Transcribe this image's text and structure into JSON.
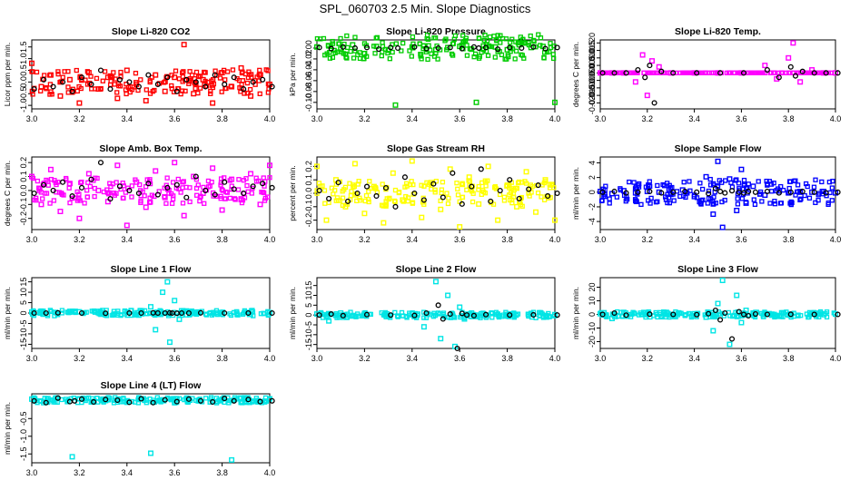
{
  "main_title": "SPL_060703  2.5 Min. Slope Diagnostics",
  "chart_data": [
    {
      "type": "scatter",
      "title": "Slope Li-820 CO2",
      "ylabel": "Licor ppm per min.",
      "color": "#ff0000",
      "xlim": [
        3.0,
        4.0
      ],
      "ylim": [
        -1.15,
        1.8
      ],
      "yticks": [
        -1.0,
        -0.5,
        0.0,
        0.5,
        1.0,
        1.5
      ],
      "yticklabels": [
        "-1.0",
        "-0.5",
        "0.0",
        "0.5",
        "1.0",
        "1.5"
      ],
      "x": [
        3.0,
        3.04,
        3.08,
        3.12,
        3.16,
        3.2,
        3.24,
        3.28,
        3.32,
        3.36,
        3.4,
        3.44,
        3.48,
        3.52,
        3.56,
        3.6,
        3.64,
        3.68,
        3.72,
        3.76,
        3.8,
        3.84,
        3.88,
        3.92,
        3.96,
        4.0
      ],
      "y": [
        0.8,
        -0.2,
        0.3,
        -0.6,
        0.1,
        -0.9,
        0.4,
        -0.3,
        0.2,
        -0.7,
        0.5,
        -0.1,
        -0.8,
        0.3,
        -0.4,
        0.2,
        1.6,
        -0.5,
        0.1,
        -0.9,
        0.4,
        -0.2,
        0.6,
        -0.6,
        0.3,
        -0.1
      ],
      "black_y": [
        -0.3,
        0.1,
        -0.2,
        0.0,
        -0.4,
        0.2,
        -0.1,
        0.5,
        -0.3,
        0.1,
        0.0,
        -0.2,
        0.3,
        -0.1,
        0.2,
        -0.4,
        0.1,
        0.0,
        -0.2,
        0.3,
        -0.1,
        0.2,
        -0.3,
        0.0,
        0.1,
        -0.2
      ]
    },
    {
      "type": "scatter",
      "title": "Slope Li-820 Pressure",
      "ylabel": "kPa per min.",
      "color": "#00cc00",
      "xlim": [
        3.0,
        4.0
      ],
      "ylim": [
        -0.112,
        0.015
      ],
      "yticks": [
        0.0,
        -0.02,
        -0.04,
        -0.06,
        -0.08,
        -0.1
      ],
      "yticklabels": [
        "0.00",
        "-0.02",
        "-0.04",
        "-0.06",
        "-0.08",
        "-0.10"
      ],
      "x": [
        3.0,
        3.05,
        3.1,
        3.15,
        3.2,
        3.25,
        3.3,
        3.33,
        3.4,
        3.45,
        3.5,
        3.55,
        3.6,
        3.65,
        3.67,
        3.7,
        3.75,
        3.8,
        3.85,
        3.9,
        3.95,
        4.0
      ],
      "y": [
        0.002,
        0.004,
        -0.002,
        0.006,
        -0.01,
        0.003,
        -0.004,
        -0.105,
        0.002,
        0.004,
        -0.003,
        0.001,
        0.003,
        -0.002,
        -0.1,
        0.004,
        0.002,
        -0.003,
        0.006,
        0.001,
        0.003,
        -0.1
      ],
      "black_y": [
        0.001,
        -0.001,
        0.002,
        0.0,
        0.001,
        -0.002,
        0.001,
        0.0,
        0.002,
        -0.001,
        0.0,
        0.001,
        -0.001,
        0.002,
        0.0,
        0.001,
        -0.002,
        0.001,
        0.0,
        0.002,
        -0.001,
        0.001
      ]
    },
    {
      "type": "scatter",
      "title": "Slope Li-820 Temp.",
      "ylabel": "degrees C per min.",
      "color": "#ff00ff",
      "xlim": [
        3.0,
        4.0
      ],
      "ylim": [
        -0.024,
        0.022
      ],
      "yticks": [
        0.02,
        0.015,
        0.01,
        0.005,
        0.0,
        -0.005,
        -0.01,
        -0.015,
        -0.02
      ],
      "yticklabels": [
        "0.020",
        "0.015",
        "0.010",
        "0.005",
        "0.000",
        "-0.005",
        "-0.010",
        "-0.015",
        "-0.020"
      ],
      "x": [
        3.0,
        3.05,
        3.1,
        3.15,
        3.18,
        3.2,
        3.22,
        3.25,
        3.3,
        3.4,
        3.5,
        3.6,
        3.7,
        3.75,
        3.8,
        3.82,
        3.85,
        3.9,
        3.95,
        4.0
      ],
      "y": [
        0.0,
        0.0,
        0.0,
        -0.006,
        0.012,
        -0.015,
        0.008,
        0.004,
        0.0,
        0.0,
        0.0,
        0.0,
        0.005,
        -0.004,
        0.01,
        0.02,
        -0.006,
        0.002,
        0.0,
        0.0
      ],
      "black_y": [
        0.0,
        0.0,
        0.0,
        0.002,
        -0.003,
        0.005,
        -0.02,
        0.001,
        0.0,
        0.0,
        0.0,
        0.0,
        0.002,
        -0.003,
        0.004,
        -0.002,
        0.001,
        0.0,
        0.0,
        0.0
      ]
    },
    {
      "type": "scatter",
      "title": "Slope Amb. Box Temp.",
      "ylabel": "degrees C per min.",
      "color": "#ff00ff",
      "xlim": [
        3.0,
        4.0
      ],
      "ylim": [
        -0.28,
        0.24
      ],
      "yticks": [
        0.2,
        0.1,
        0.0,
        -0.1,
        -0.2
      ],
      "yticklabels": [
        "0.2",
        "0.1",
        "0.0",
        "-0.1",
        "-0.2"
      ],
      "x": [
        3.0,
        3.04,
        3.08,
        3.12,
        3.16,
        3.2,
        3.24,
        3.28,
        3.32,
        3.36,
        3.4,
        3.44,
        3.48,
        3.52,
        3.56,
        3.6,
        3.64,
        3.68,
        3.72,
        3.76,
        3.8,
        3.84,
        3.88,
        3.92,
        3.96,
        4.0
      ],
      "y": [
        0.1,
        -0.1,
        0.15,
        -0.15,
        0.05,
        -0.2,
        0.12,
        0.0,
        -0.08,
        0.18,
        -0.25,
        0.06,
        -0.12,
        0.14,
        -0.05,
        0.2,
        -0.18,
        0.1,
        -0.02,
        0.16,
        -0.14,
        0.08,
        -0.06,
        0.12,
        -0.1,
        0.18
      ],
      "black_y": [
        -0.02,
        0.04,
        0.0,
        0.06,
        -0.04,
        0.02,
        0.08,
        0.2,
        -0.06,
        0.03,
        0.0,
        -0.02,
        0.05,
        -0.03,
        0.02,
        0.04,
        -0.05,
        0.1,
        0.0,
        -0.03,
        0.06,
        0.01,
        -0.02,
        0.03,
        0.05,
        0.02
      ]
    },
    {
      "type": "scatter",
      "title": "Slope Gas Stream RH",
      "ylabel": "percent per min.",
      "color": "#ffff00",
      "xlim": [
        3.0,
        4.0
      ],
      "ylim": [
        -0.27,
        0.27
      ],
      "yticks": [
        0.2,
        0.1,
        0.0,
        -0.1,
        -0.2
      ],
      "yticklabels": [
        "0.2",
        "0.1",
        "0.0",
        "-0.1",
        "-0.2"
      ],
      "x": [
        3.0,
        3.04,
        3.08,
        3.12,
        3.16,
        3.2,
        3.24,
        3.28,
        3.32,
        3.36,
        3.4,
        3.44,
        3.48,
        3.52,
        3.56,
        3.6,
        3.64,
        3.68,
        3.72,
        3.76,
        3.8,
        3.84,
        3.88,
        3.92,
        3.96,
        4.0
      ],
      "y": [
        0.2,
        -0.2,
        0.1,
        -0.1,
        0.22,
        -0.15,
        0.05,
        -0.22,
        0.15,
        -0.05,
        0.24,
        -0.18,
        0.08,
        -0.12,
        0.18,
        -0.25,
        0.12,
        -0.08,
        0.2,
        -0.2,
        0.06,
        -0.1,
        0.16,
        -0.14,
        0.1,
        -0.2
      ],
      "black_y": [
        0.02,
        -0.04,
        0.08,
        -0.06,
        0.0,
        0.05,
        -0.02,
        0.04,
        -0.1,
        0.12,
        0.0,
        -0.05,
        0.07,
        -0.03,
        0.15,
        -0.08,
        0.05,
        0.18,
        -0.06,
        0.02,
        0.1,
        -0.04,
        0.03,
        0.06,
        -0.02,
        0.0
      ]
    },
    {
      "type": "scatter",
      "title": "Slope Sample Flow",
      "ylabel": "ml/min per min.",
      "color": "#0000ff",
      "xlim": [
        3.0,
        4.0
      ],
      "ylim": [
        -5.1,
        4.8
      ],
      "yticks": [
        4,
        2,
        0,
        -2,
        -4
      ],
      "yticklabels": [
        "4",
        "2",
        "0",
        "-2",
        "-4"
      ],
      "x": [
        3.0,
        3.05,
        3.1,
        3.15,
        3.2,
        3.25,
        3.3,
        3.35,
        3.4,
        3.45,
        3.48,
        3.5,
        3.52,
        3.55,
        3.58,
        3.6,
        3.62,
        3.65,
        3.7,
        3.75,
        3.8,
        3.85,
        3.9,
        3.95,
        4.0
      ],
      "y": [
        0.1,
        -0.2,
        0.2,
        -0.1,
        0.1,
        0.0,
        -0.3,
        0.3,
        -0.6,
        2.1,
        -3.0,
        4.2,
        -4.8,
        1.8,
        -2.5,
        3.1,
        -1.5,
        0.8,
        -0.4,
        0.2,
        -0.1,
        0.1,
        0.0,
        0.1,
        -0.1
      ],
      "black_y": [
        0.0,
        0.1,
        -0.1,
        0.0,
        0.1,
        -0.1,
        0.0,
        0.1,
        0.0,
        -0.2,
        0.5,
        0.1,
        -0.1,
        0.2,
        0.0,
        -0.1,
        0.1,
        0.0,
        0.1,
        -0.1,
        0.0,
        0.1,
        0.0,
        -0.1,
        0.0
      ]
    },
    {
      "type": "scatter",
      "title": "Slope Line 1 Flow",
      "ylabel": "ml/min per min.",
      "color": "#00e5e5",
      "xlim": [
        3.0,
        4.0
      ],
      "ylim": [
        -17,
        17
      ],
      "yticks": [
        15,
        10,
        5,
        0,
        -5,
        -10,
        -15
      ],
      "yticklabels": [
        "15",
        "10",
        "5",
        "0",
        "-5",
        "-10",
        "-15"
      ],
      "x": [
        3.0,
        3.05,
        3.1,
        3.2,
        3.3,
        3.4,
        3.45,
        3.5,
        3.52,
        3.55,
        3.57,
        3.58,
        3.6,
        3.62,
        3.65,
        3.7,
        3.8,
        3.9,
        4.0
      ],
      "y": [
        0.5,
        -0.5,
        0.3,
        0.6,
        -0.4,
        0.5,
        -1.0,
        3.0,
        -8.0,
        10.0,
        15.0,
        -14.0,
        6.0,
        -3.0,
        1.0,
        0.5,
        -0.4,
        0.3,
        0.2
      ],
      "black_y": [
        0.0,
        0.0,
        0.1,
        0.0,
        -0.1,
        0.0,
        0.0,
        0.1,
        0.0,
        0.0,
        0.1,
        0.0,
        -0.1,
        0.0,
        0.0,
        0.1,
        0.0,
        0.0,
        0.0
      ]
    },
    {
      "type": "scatter",
      "title": "Slope Line 2 Flow",
      "ylabel": "ml/min per min.",
      "color": "#00e5e5",
      "xlim": [
        3.0,
        4.0
      ],
      "ylim": [
        -17,
        19
      ],
      "yticks": [
        15,
        10,
        5,
        0,
        -5,
        -10,
        -15
      ],
      "yticklabels": [
        "15",
        "10",
        "5",
        "0",
        "-5",
        "-10",
        "-15"
      ],
      "x": [
        3.0,
        3.05,
        3.1,
        3.2,
        3.3,
        3.4,
        3.45,
        3.5,
        3.52,
        3.55,
        3.58,
        3.6,
        3.62,
        3.65,
        3.7,
        3.8,
        3.9,
        4.0
      ],
      "y": [
        0.5,
        -3.0,
        1.0,
        0.8,
        -0.6,
        0.5,
        -6.0,
        17.0,
        -12.0,
        10.0,
        -16.0,
        4.0,
        -2.0,
        1.0,
        0.6,
        -0.5,
        0.4,
        0.2
      ],
      "black_y": [
        0.0,
        0.5,
        -0.3,
        0.2,
        0.0,
        -0.2,
        1.0,
        5.0,
        -2.0,
        0.5,
        -17.0,
        0.8,
        0.0,
        -0.3,
        0.2,
        0.0,
        0.1,
        0.0
      ]
    },
    {
      "type": "scatter",
      "title": "Slope Line 3 Flow",
      "ylabel": "ml/min per min.",
      "color": "#00e5e5",
      "xlim": [
        3.0,
        4.0
      ],
      "ylim": [
        -25,
        27
      ],
      "yticks": [
        20,
        10,
        0,
        -10,
        -20
      ],
      "yticklabels": [
        "20",
        "10",
        "0",
        "-10",
        "-20"
      ],
      "x": [
        3.0,
        3.05,
        3.1,
        3.2,
        3.3,
        3.4,
        3.45,
        3.48,
        3.5,
        3.52,
        3.55,
        3.58,
        3.6,
        3.62,
        3.65,
        3.7,
        3.8,
        3.9,
        4.0
      ],
      "y": [
        0.5,
        -3.0,
        1.5,
        0.8,
        -0.6,
        0.5,
        -2.0,
        -12.0,
        8.0,
        25.0,
        -22.0,
        14.0,
        -6.0,
        3.0,
        1.0,
        0.6,
        -0.5,
        0.4,
        0.2
      ],
      "black_y": [
        0.0,
        1.0,
        -0.5,
        0.2,
        0.0,
        -0.2,
        0.5,
        3.0,
        -4.0,
        1.0,
        -18.0,
        2.0,
        0.0,
        -1.0,
        0.3,
        0.0,
        0.1,
        0.0,
        0.0
      ]
    },
    {
      "type": "scatter",
      "title": "Slope Line 4 (LT) Flow",
      "ylabel": "ml/min per min.",
      "color": "#00e5e5",
      "xlim": [
        3.0,
        4.0
      ],
      "ylim": [
        -1.75,
        0.2
      ],
      "yticks": [
        -0.5,
        -1.0,
        -1.5
      ],
      "yticklabels": [
        "-0.5",
        "-1.0",
        "-1.5"
      ],
      "x": [
        3.0,
        3.05,
        3.1,
        3.15,
        3.17,
        3.2,
        3.25,
        3.3,
        3.35,
        3.4,
        3.45,
        3.5,
        3.55,
        3.6,
        3.65,
        3.7,
        3.75,
        3.8,
        3.84,
        3.9,
        3.95,
        4.0
      ],
      "y": [
        0.05,
        -0.05,
        0.08,
        -0.02,
        -1.58,
        0.06,
        -0.03,
        0.05,
        0.02,
        -0.04,
        0.07,
        -1.48,
        0.03,
        -0.05,
        0.06,
        0.0,
        -0.03,
        0.05,
        -1.67,
        0.04,
        -0.02,
        0.06
      ],
      "black_y": [
        0.0,
        -0.05,
        0.08,
        -0.02,
        0.0,
        0.05,
        -0.03,
        0.04,
        0.02,
        -0.04,
        0.06,
        -0.05,
        0.03,
        -0.02,
        0.05,
        0.0,
        -0.03,
        0.07,
        0.0,
        0.04,
        -0.02,
        0.0
      ]
    }
  ],
  "x_ticks": [
    3.0,
    3.2,
    3.4,
    3.6,
    3.8,
    4.0
  ],
  "x_ticklabels": [
    "3.0",
    "3.2",
    "3.4",
    "3.6",
    "3.8",
    "4.0"
  ]
}
